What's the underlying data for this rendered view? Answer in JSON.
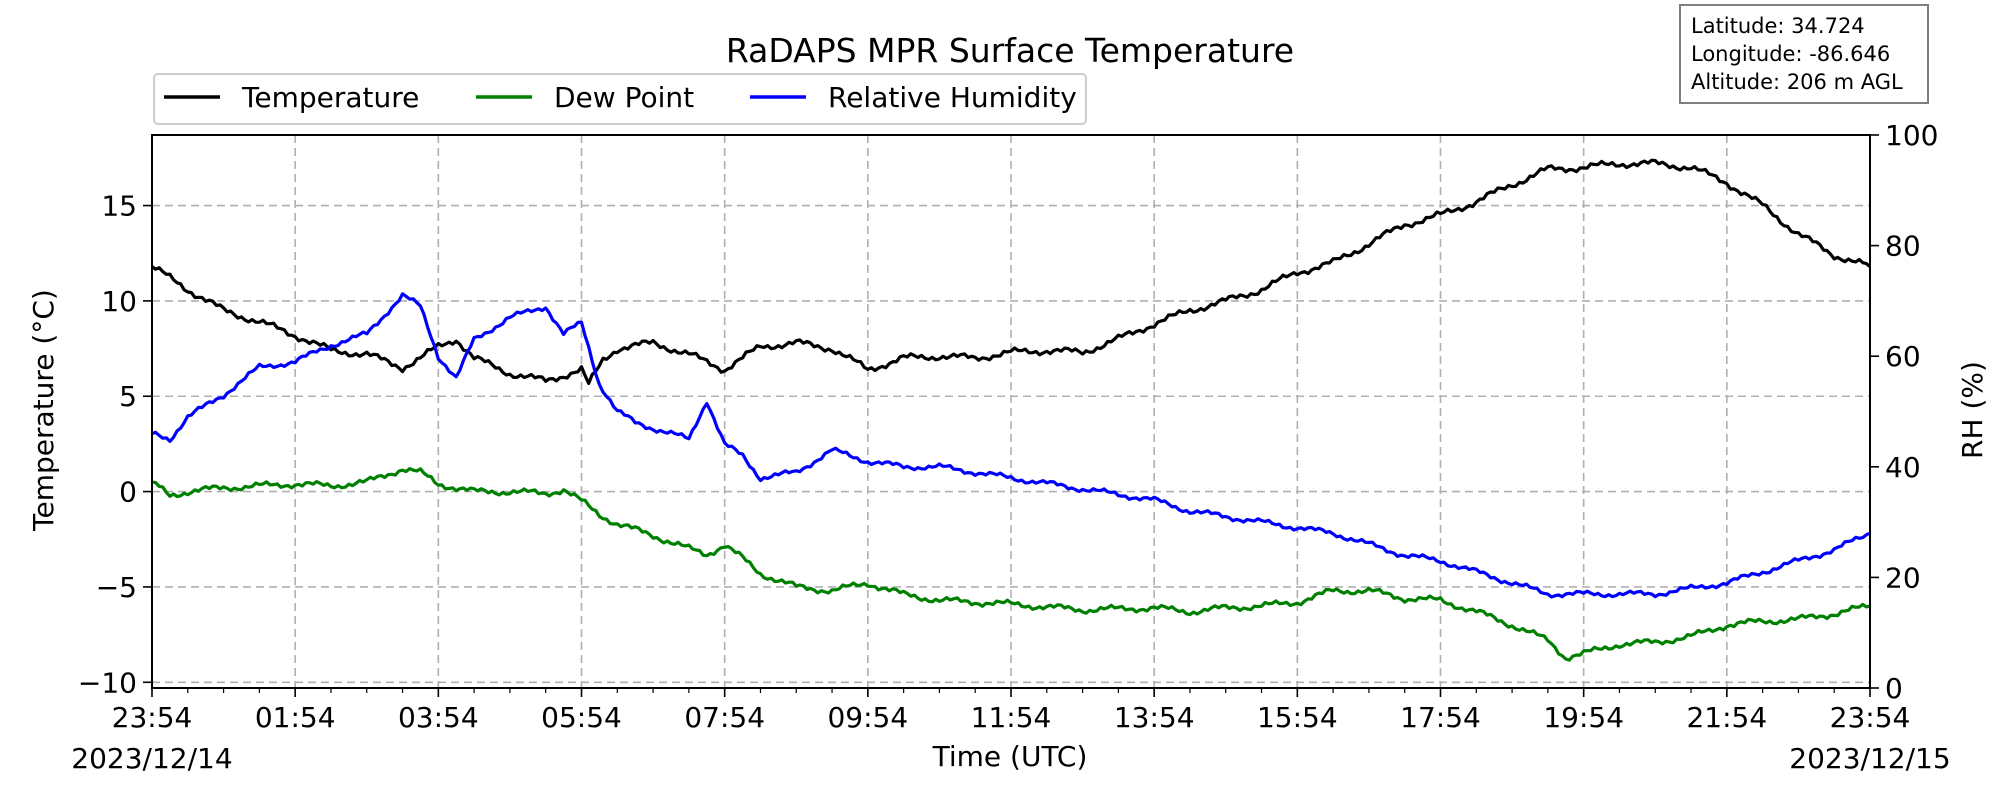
{
  "chart_data": {
    "type": "line",
    "title": "RaDAPS MPR Surface Temperature",
    "xlabel": "Time (UTC)",
    "ylabel": "Temperature ($^\\circ$C)",
    "ylabel_display": "Temperature (°C)",
    "y2label": "RH (%)",
    "ylim": [
      -10.3,
      18.7
    ],
    "y2lim": [
      0,
      100
    ],
    "x_start": "2023-12-14 23:54",
    "x_end": "2023-12-15 23:54",
    "x_tick_labels": [
      "23:54",
      "01:54",
      "03:54",
      "05:54",
      "07:54",
      "09:54",
      "11:54",
      "13:54",
      "15:54",
      "17:54",
      "19:54",
      "21:54",
      "23:54"
    ],
    "x_tick_hours": [
      0,
      2,
      4,
      6,
      8,
      10,
      12,
      14,
      16,
      18,
      20,
      22,
      24
    ],
    "y_ticks": [
      -10,
      -5,
      0,
      5,
      10,
      15
    ],
    "y_tick_labels": [
      "−10",
      "−5",
      "0",
      "5",
      "10",
      "15"
    ],
    "y2_ticks": [
      0,
      20,
      40,
      60,
      80,
      100
    ],
    "y2_tick_labels": [
      "0",
      "20",
      "40",
      "60",
      "80",
      "100"
    ],
    "date_left": "2023/12/14",
    "date_right": "2023/12/15",
    "grid": true,
    "legend_position": "top-left, above plot",
    "info_box": [
      "Latitude: 34.724",
      "Longitude: -86.646",
      "Altitude: 206 m AGL"
    ],
    "series": [
      {
        "name": "Temperature",
        "axis": "left",
        "color": "#000000",
        "x_hours": [
          0,
          0.25,
          0.5,
          1,
          1.5,
          2,
          2.5,
          3,
          3.5,
          3.75,
          4,
          4.25,
          4.5,
          5,
          5.5,
          6,
          6.1,
          6.3,
          6.5,
          7,
          7.5,
          8,
          8.5,
          9,
          9.5,
          10,
          10.5,
          11,
          11.5,
          12,
          12.5,
          13,
          13.5,
          14,
          14.5,
          15,
          15.5,
          16,
          16.5,
          17,
          17.5,
          18,
          18.5,
          19,
          19.5,
          20,
          20.5,
          21,
          21.5,
          22,
          22.5,
          23,
          23.5,
          24
        ],
        "values": [
          11.8,
          11.2,
          10.6,
          9.5,
          8.9,
          8.2,
          7.4,
          7.2,
          6.5,
          7.0,
          7.6,
          8.0,
          7.0,
          6.2,
          5.8,
          6.4,
          5.6,
          6.9,
          7.5,
          7.8,
          7.2,
          6.4,
          7.6,
          7.8,
          7.5,
          6.4,
          7.0,
          7.1,
          7.0,
          7.3,
          7.4,
          7.3,
          8.0,
          8.8,
          9.5,
          10.0,
          10.6,
          11.5,
          12.0,
          13.0,
          14.0,
          14.5,
          15.2,
          16.1,
          16.9,
          17.0,
          17.2,
          17.2,
          17.0,
          16.2,
          15.0,
          13.5,
          12.4,
          11.8
        ]
      },
      {
        "name": "Dew Point",
        "axis": "left",
        "color": "#008000",
        "x_hours": [
          0,
          0.25,
          0.5,
          1,
          1.5,
          2,
          2.5,
          3,
          3.5,
          3.75,
          4,
          4.5,
          5,
          5.5,
          5.75,
          6,
          6.25,
          6.5,
          7,
          7.5,
          7.75,
          8,
          8.25,
          8.5,
          9,
          9.5,
          10,
          10.5,
          11,
          12,
          13,
          14,
          14.5,
          15,
          15.5,
          16,
          16.5,
          17,
          17.5,
          18,
          18.5,
          19,
          19.5,
          19.75,
          20,
          20.5,
          21,
          21.5,
          22,
          22.5,
          23,
          23.5,
          24
        ],
        "values": [
          0.5,
          -0.2,
          0.0,
          0.2,
          0.3,
          0.4,
          0.3,
          0.5,
          1.2,
          1.0,
          0.4,
          0.0,
          0.0,
          -0.1,
          0.1,
          -0.5,
          -1.2,
          -1.7,
          -2.3,
          -3.0,
          -3.3,
          -2.8,
          -3.5,
          -4.3,
          -5.0,
          -5.2,
          -4.8,
          -5.4,
          -5.7,
          -5.9,
          -6.2,
          -6.1,
          -6.3,
          -6.1,
          -6.0,
          -5.8,
          -5.2,
          -5.2,
          -5.6,
          -5.7,
          -6.3,
          -7.0,
          -7.8,
          -8.7,
          -8.5,
          -8.0,
          -7.9,
          -7.6,
          -7.0,
          -6.8,
          -6.7,
          -6.4,
          -6.0
        ]
      },
      {
        "name": "Relative Humidity",
        "axis": "right",
        "color": "#0000ff",
        "x_hours": [
          0,
          0.25,
          0.5,
          1,
          1.5,
          2,
          2.5,
          3,
          3.5,
          3.75,
          4,
          4.25,
          4.5,
          5,
          5.5,
          5.75,
          6,
          6.25,
          6.5,
          6.75,
          7,
          7.5,
          7.75,
          8,
          8.25,
          8.5,
          9,
          9.5,
          10,
          10.5,
          11,
          12,
          13,
          14,
          14.5,
          15,
          15.5,
          16,
          16.5,
          17,
          17.5,
          18,
          18.5,
          19,
          19.5,
          20,
          20.5,
          21,
          21.5,
          22,
          22.5,
          23,
          23.5,
          24
        ],
        "values": [
          46,
          45,
          49,
          53,
          58,
          59,
          62,
          64,
          71,
          69,
          60,
          56,
          63,
          67,
          69,
          64,
          66,
          55,
          50,
          48,
          47,
          45,
          52,
          44,
          42,
          38,
          39,
          43,
          41,
          40,
          40,
          38,
          36,
          34,
          32,
          31,
          30,
          29,
          28,
          26,
          24,
          23,
          21,
          19,
          17,
          17,
          17,
          17,
          18,
          19,
          21,
          23,
          25,
          28
        ]
      }
    ]
  }
}
